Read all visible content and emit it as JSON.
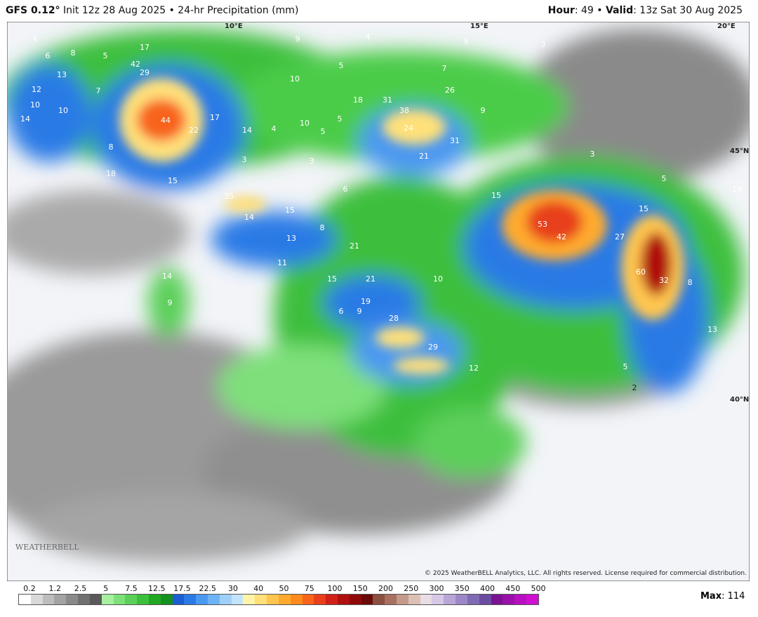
{
  "header": {
    "model": "GFS 0.12°",
    "init": "Init 12z 28 Aug 2025 • 24-hr Precipitation (mm)",
    "hour_label": "Hour",
    "hour_value": ": 49 •",
    "valid_label": "Valid",
    "valid_value": ": 13z Sat 30 Aug 2025"
  },
  "graticule": [
    "10°E",
    "15°E",
    "20°E",
    "45°N",
    "40°N"
  ],
  "map_labels": [
    4,
    6,
    8,
    5,
    17,
    29,
    42,
    13,
    12,
    7,
    10,
    10,
    14,
    44,
    22,
    17,
    14,
    8,
    18,
    15,
    4,
    10,
    5,
    3,
    3,
    10,
    9,
    4,
    5,
    9,
    7,
    3,
    18,
    31,
    38,
    24,
    21,
    31,
    26,
    9,
    5,
    6,
    35,
    15,
    14,
    8,
    13,
    11,
    21,
    15,
    21,
    10,
    19,
    6,
    9,
    28,
    29,
    12,
    15,
    53,
    42,
    27,
    15,
    5,
    3,
    60,
    32,
    8,
    14,
    13,
    5,
    2,
    14,
    9
  ],
  "logo": "WEATHERBELL",
  "copyright": "© 2025 WeatherBELL Analytics, LLC. All rights reserved. License required for commercial distribution.",
  "legend": {
    "values": [
      0.2,
      1.2,
      2.5,
      5,
      7.5,
      12.5,
      17.5,
      22.5,
      30,
      40,
      50,
      75,
      100,
      150,
      200,
      250,
      300,
      350,
      400,
      450,
      500
    ],
    "colors": [
      "#ffffff",
      "#d9d9d9",
      "#bdbdbd",
      "#a3a3a3",
      "#8a8a8a",
      "#707070",
      "#5a5a5a",
      "#a6f0a0",
      "#7ee07a",
      "#5ccf5a",
      "#3cbf3c",
      "#22a722",
      "#14901e",
      "#1b5ed4",
      "#2a7ae6",
      "#4b98f0",
      "#6db3f5",
      "#9fd0f8",
      "#c3e4fb",
      "#fff4a8",
      "#ffe07a",
      "#ffc64f",
      "#ffaa2e",
      "#ff8a1e",
      "#f8641a",
      "#e8401a",
      "#d02018",
      "#b01010",
      "#8e0a0a",
      "#6b0a0a",
      "#8a5040",
      "#a87060",
      "#c49a8c",
      "#dcc0b5",
      "#e9dde6",
      "#d6c8e6",
      "#b9a6d6",
      "#9c88c6",
      "#7f6ab4",
      "#6a4ca0",
      "#7a1490",
      "#9a10a8",
      "#b810c0",
      "#d010d0"
    ]
  },
  "max_label": "Max",
  "max_value": 114
}
